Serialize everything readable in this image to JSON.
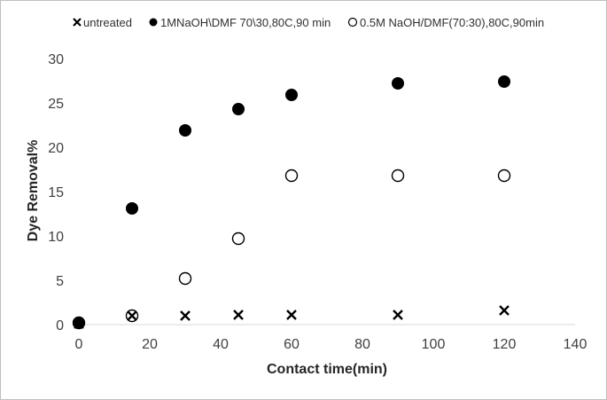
{
  "chart_data": {
    "type": "scatter",
    "title": "",
    "xlabel": "Contact time(min)",
    "ylabel": "Dye Removal%",
    "xlim": [
      0,
      140
    ],
    "ylim": [
      0,
      30
    ],
    "xticks": [
      0,
      20,
      40,
      60,
      80,
      100,
      120,
      140
    ],
    "yticks": [
      0,
      5,
      10,
      15,
      20,
      25,
      30
    ],
    "grid": false,
    "legend_position": "top",
    "series": [
      {
        "name": "untreated",
        "marker": "x",
        "color": "#000000",
        "x": [
          0,
          15,
          30,
          45,
          60,
          90,
          120
        ],
        "y": [
          0.1,
          1.0,
          1.0,
          1.1,
          1.1,
          1.1,
          1.6
        ]
      },
      {
        "name": "1MNaOH\\DMF 70\\30,80C,90 min",
        "marker": "filled-circle",
        "color": "#000000",
        "x": [
          0,
          15,
          30,
          45,
          60,
          90,
          120
        ],
        "y": [
          0.2,
          13.1,
          21.9,
          24.3,
          25.9,
          27.2,
          27.4
        ]
      },
      {
        "name": "0.5M NaOH/DMF(70:30),80C,90min",
        "marker": "open-circle",
        "color": "#000000",
        "x": [
          0,
          15,
          30,
          45,
          60,
          90,
          120
        ],
        "y": [
          0.2,
          1.0,
          5.2,
          9.7,
          16.8,
          16.8,
          16.8
        ]
      }
    ]
  }
}
